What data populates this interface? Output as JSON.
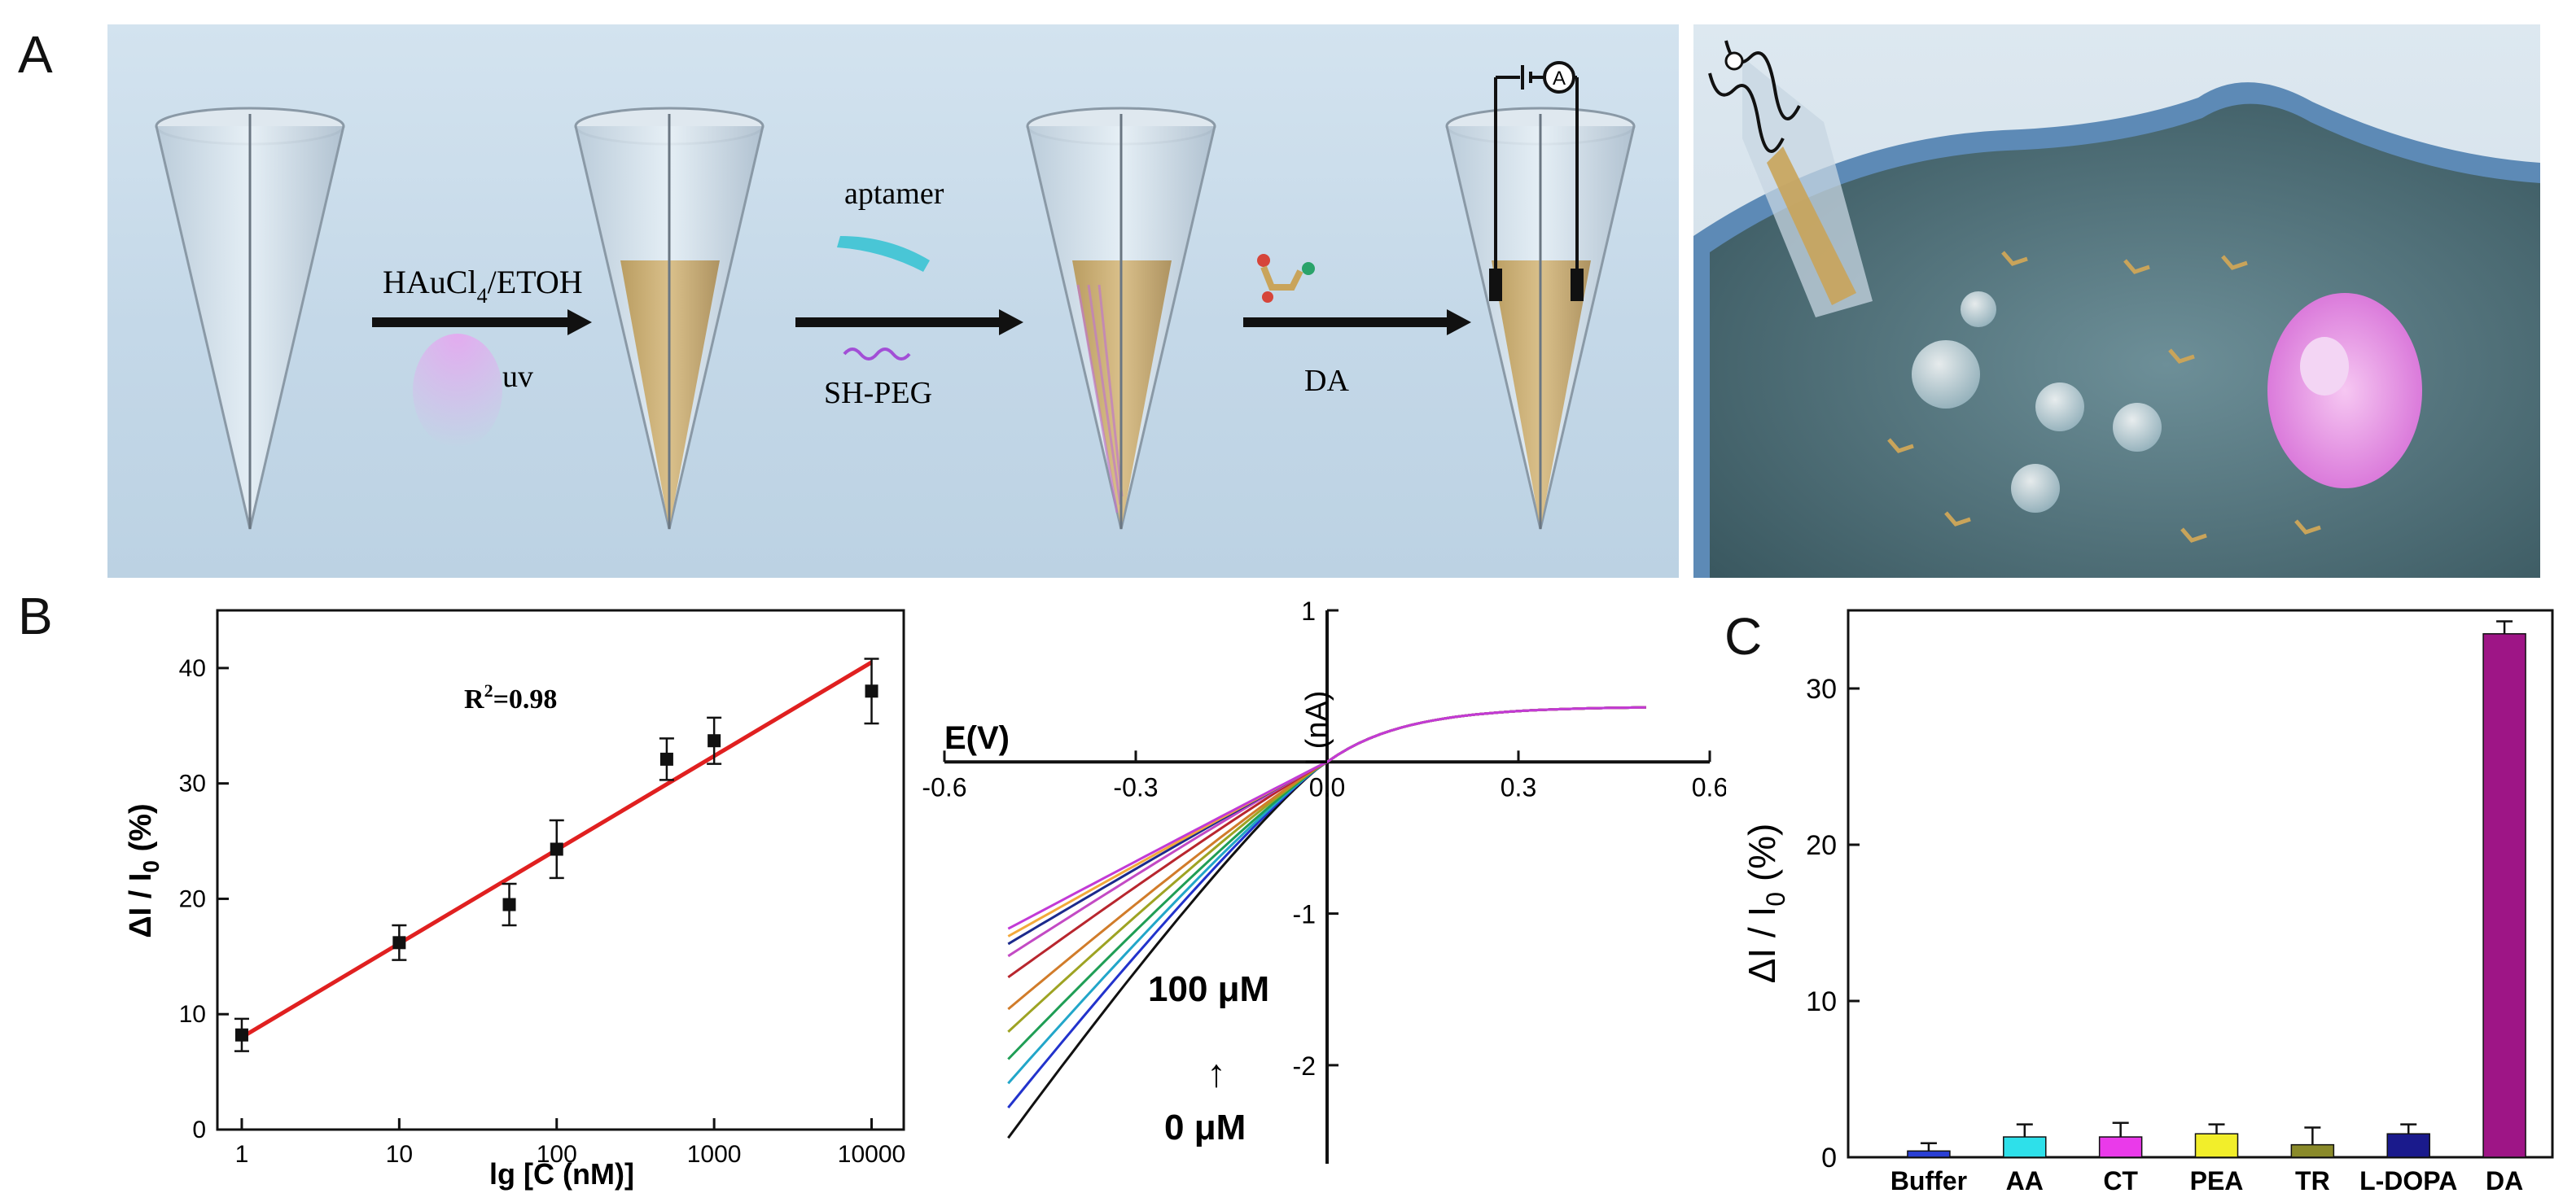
{
  "panels": {
    "A": "A",
    "B": "B",
    "C": "C"
  },
  "schematic": {
    "step1_reagent": "HAuCl",
    "step1_sub": "4",
    "step1_solvent": "/ETOH",
    "step1_light": "uv",
    "step2_top": "aptamer",
    "step2_bottom": "SH-PEG",
    "step3_label": "DA",
    "meter_symbol": "A",
    "colors": {
      "background": "#c6d9e8",
      "gold_fill": "#c9a45a",
      "aptamer": "#49c6d6",
      "peg": "#a24fd6",
      "arrow": "#111111"
    }
  },
  "chart_B1": {
    "title": "",
    "xlabel": "lg [C (nM)]",
    "ylabel_main": "ΔI / I",
    "ylabel_sub": "0",
    "ylabel_unit": " (%)",
    "annotation_main": "R",
    "annotation_sup": "2",
    "annotation_rest": "=0.98",
    "x_ticks": [
      "1",
      "10",
      "100",
      "1000",
      "10000"
    ],
    "y_ticks": [
      "0",
      "10",
      "20",
      "30",
      "40"
    ],
    "chart_data": {
      "type": "scatter",
      "x_scale": "log",
      "xlim": [
        0.7,
        16000
      ],
      "ylim": [
        0,
        45
      ],
      "points": [
        {
          "x": 1,
          "y": 8.2,
          "err": 1.4
        },
        {
          "x": 10,
          "y": 16.2,
          "err": 1.5
        },
        {
          "x": 50,
          "y": 19.5,
          "err": 1.8
        },
        {
          "x": 100,
          "y": 24.3,
          "err": 2.5
        },
        {
          "x": 500,
          "y": 32.1,
          "err": 1.8
        },
        {
          "x": 1000,
          "y": 33.7,
          "err": 2.0
        },
        {
          "x": 10000,
          "y": 38.0,
          "err": 2.8
        }
      ],
      "fit": {
        "x": [
          1,
          10000
        ],
        "y": [
          8.0,
          40.5
        ]
      },
      "colors": {
        "points": "#111111",
        "fit": "#e02020"
      }
    }
  },
  "chart_B2": {
    "xlabel": "E(V)",
    "ylabel": "I (nA)",
    "x_ticks": [
      "-0.6",
      "-0.3",
      "0.0",
      "0.3",
      "0.6"
    ],
    "y_ticks": [
      "1",
      "-1",
      "-2"
    ],
    "annotation_high": "100 μM",
    "annotation_arrow": "↑",
    "annotation_low": "0 μM",
    "chart_data": {
      "type": "line",
      "xlim": [
        -0.6,
        0.6
      ],
      "ylim": [
        -2.65,
        1.0
      ],
      "x_start": -0.5,
      "x_end": 0.5,
      "left_values": [
        -2.48,
        -2.28,
        -2.12,
        -1.96,
        -1.78,
        -1.63,
        -1.42,
        -1.28,
        -1.2,
        -1.15,
        -1.1
      ],
      "right_value": 0.36,
      "colors": [
        "#111111",
        "#2233cc",
        "#22a6c9",
        "#1f9e55",
        "#9ea323",
        "#d17c2a",
        "#b8262e",
        "#c34ac4",
        "#1c2a8c",
        "#f2a93b",
        "#c23ad6"
      ]
    }
  },
  "chart_C": {
    "ylabel_main": "ΔI / I",
    "ylabel_sub": "0",
    "ylabel_unit": " (%)",
    "y_ticks": [
      "0",
      "10",
      "20",
      "30"
    ],
    "chart_data": {
      "type": "bar",
      "categories": [
        "Buffer",
        "AA",
        "CT",
        "PEA",
        "TR",
        "L-DOPA",
        "DA"
      ],
      "values": [
        0.4,
        1.3,
        1.3,
        1.5,
        0.8,
        1.5,
        33.5
      ],
      "errors": [
        0.5,
        0.8,
        0.9,
        0.6,
        1.1,
        0.6,
        0.8
      ],
      "ylim": [
        0,
        35
      ],
      "colors": [
        "#2a3fd4",
        "#2ee0ea",
        "#ea3aea",
        "#f2ee2a",
        "#8a8a2a",
        "#1a1a8c",
        "#9e1586"
      ]
    }
  }
}
